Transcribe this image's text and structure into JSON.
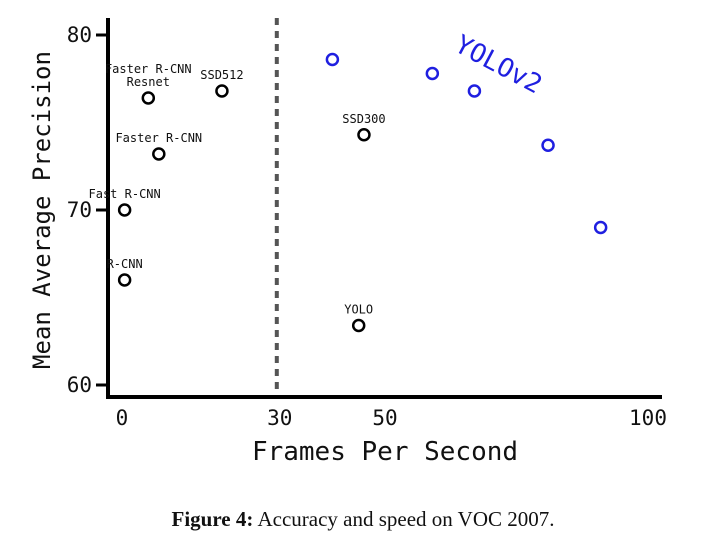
{
  "chart_data": {
    "type": "scatter",
    "xlabel": "Frames Per Second",
    "ylabel": "Mean Average Precision",
    "xlim": [
      0,
      100
    ],
    "ylim": [
      60,
      80
    ],
    "x_ticks": [
      {
        "value": 0,
        "label": "0"
      },
      {
        "value": 30,
        "label": "30"
      },
      {
        "value": 50,
        "label": "50"
      },
      {
        "value": 100,
        "label": "100"
      }
    ],
    "y_ticks": [
      {
        "value": 60,
        "label": "60"
      },
      {
        "value": 70,
        "label": "70"
      },
      {
        "value": 80,
        "label": "80"
      }
    ],
    "reference_line_x": 30,
    "series": [
      {
        "color": "#000000",
        "points": [
          {
            "x": 0.5,
            "y": 66.0,
            "label": "R-CNN"
          },
          {
            "x": 0.5,
            "y": 70.0,
            "label": "Fast R-CNN"
          },
          {
            "x": 7,
            "y": 73.2,
            "label": "Faster R-CNN"
          },
          {
            "x": 5,
            "y": 76.4,
            "label": "Faster R-CNN\nResnet"
          },
          {
            "x": 19,
            "y": 76.8,
            "label": "SSD512"
          },
          {
            "x": 46,
            "y": 74.3,
            "label": "SSD300"
          },
          {
            "x": 45,
            "y": 63.4,
            "label": "YOLO"
          }
        ]
      },
      {
        "name": "YOLOv2",
        "color": "#1f1fe0",
        "points": [
          {
            "x": 40,
            "y": 78.6
          },
          {
            "x": 59,
            "y": 77.8
          },
          {
            "x": 67,
            "y": 76.8
          },
          {
            "x": 81,
            "y": 73.7
          },
          {
            "x": 91,
            "y": 69.0
          }
        ]
      }
    ]
  },
  "caption": {
    "label": "Figure 4:",
    "text": "Accuracy and speed on VOC 2007."
  }
}
